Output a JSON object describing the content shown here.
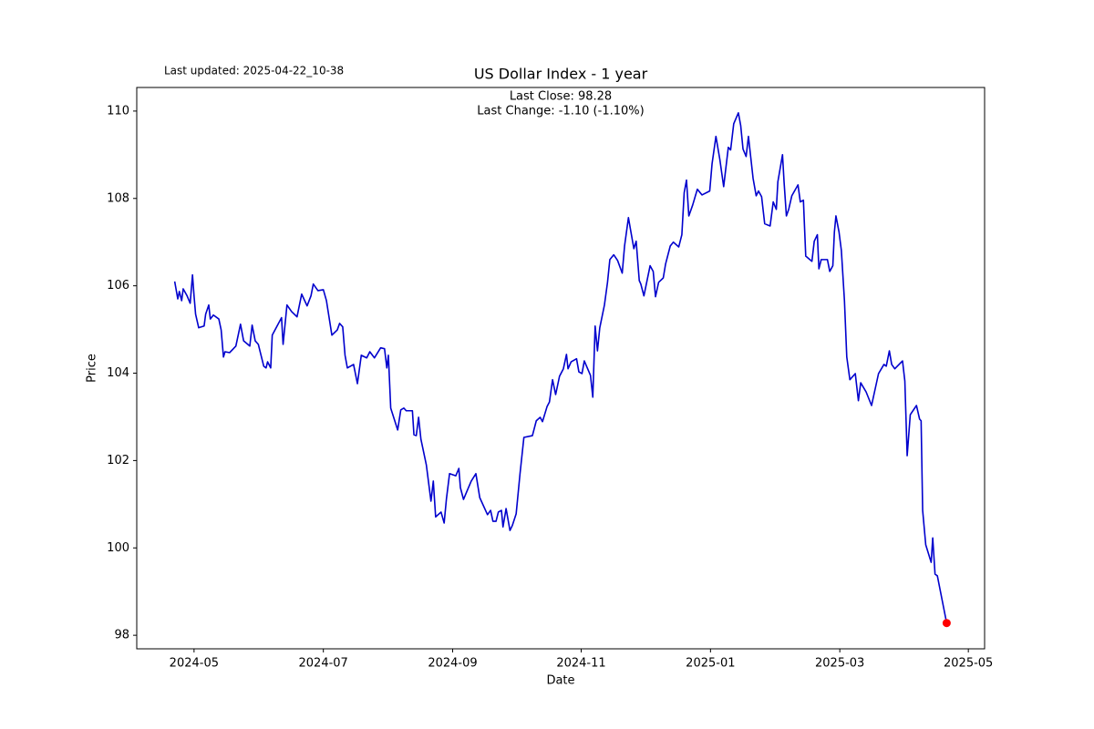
{
  "chart_data": {
    "type": "line",
    "title": "US Dollar Index - 1 year",
    "note": "Last updated: 2025-04-22_10-38",
    "annotations": [
      "Last Close: 98.28",
      "Last Change: -1.10 (-1.10%)"
    ],
    "x_label": "Date",
    "y_label": "Price",
    "xlim": [
      2024.259,
      2025.354
    ],
    "ylim": [
      97.69,
      110.54
    ],
    "xticks": [
      {
        "value": 2024.333,
        "label": "2024-05"
      },
      {
        "value": 2024.5,
        "label": "2024-07"
      },
      {
        "value": 2024.667,
        "label": "2024-09"
      },
      {
        "value": 2024.833,
        "label": "2024-11"
      },
      {
        "value": 2025.0,
        "label": "2025-01"
      },
      {
        "value": 2025.167,
        "label": "2025-03"
      },
      {
        "value": 2025.333,
        "label": "2025-05"
      }
    ],
    "yticks": [
      98,
      100,
      102,
      104,
      106,
      108,
      110
    ],
    "grid": false,
    "last_point_color": "#ff0000",
    "x": [
      2024.308,
      2024.312,
      2024.314,
      2024.317,
      2024.319,
      2024.324,
      2024.328,
      2024.331,
      2024.333,
      2024.335,
      2024.339,
      2024.346,
      2024.348,
      2024.352,
      2024.354,
      2024.358,
      2024.365,
      2024.368,
      2024.371,
      2024.373,
      2024.379,
      2024.387,
      2024.393,
      2024.397,
      2024.405,
      2024.408,
      2024.412,
      2024.416,
      2024.423,
      2024.426,
      2024.428,
      2024.432,
      2024.434,
      2024.446,
      2024.448,
      2024.453,
      2024.459,
      2024.466,
      2024.472,
      2024.479,
      2024.484,
      2024.487,
      2024.493,
      2024.5,
      2024.504,
      2024.511,
      2024.518,
      2024.521,
      2024.525,
      2024.528,
      2024.531,
      2024.539,
      2024.544,
      2024.549,
      2024.556,
      2024.56,
      2024.566,
      2024.574,
      2024.579,
      2024.582,
      2024.584,
      2024.587,
      2024.596,
      2024.6,
      2024.604,
      2024.607,
      2024.615,
      2024.617,
      2024.62,
      2024.623,
      2024.626,
      2024.633,
      2024.639,
      2024.642,
      2024.645,
      2024.652,
      2024.656,
      2024.659,
      2024.663,
      2024.671,
      2024.675,
      2024.677,
      2024.681,
      2024.685,
      2024.691,
      2024.697,
      2024.702,
      2024.712,
      2024.716,
      2024.719,
      2024.723,
      2024.726,
      2024.73,
      2024.732,
      2024.736,
      2024.741,
      2024.744,
      2024.749,
      2024.754,
      2024.759,
      2024.77,
      2024.775,
      2024.78,
      2024.783,
      2024.789,
      2024.792,
      2024.796,
      2024.8,
      2024.805,
      2024.81,
      2024.814,
      2024.816,
      2024.82,
      2024.827,
      2024.83,
      2024.834,
      2024.837,
      2024.845,
      2024.848,
      2024.851,
      2024.854,
      2024.857,
      2024.863,
      2024.867,
      2024.87,
      2024.875,
      2024.88,
      2024.886,
      2024.889,
      2024.894,
      2024.901,
      2024.904,
      2024.908,
      2024.91,
      2024.914,
      2024.922,
      2024.926,
      2024.929,
      2024.933,
      2024.939,
      2024.942,
      2024.948,
      2024.952,
      2024.959,
      2024.963,
      2024.966,
      2024.969,
      2024.972,
      2024.977,
      2024.983,
      2024.989,
      2024.999,
      2025.002,
      2025.007,
      2025.012,
      2025.017,
      2025.023,
      2025.026,
      2025.03,
      2025.036,
      2025.039,
      2025.042,
      2025.046,
      2025.049,
      2025.055,
      2025.059,
      2025.062,
      2025.066,
      2025.07,
      2025.077,
      2025.081,
      2025.085,
      2025.087,
      2025.093,
      2025.095,
      2025.098,
      2025.101,
      2025.105,
      2025.113,
      2025.116,
      2025.12,
      2025.123,
      2025.131,
      2025.134,
      2025.138,
      2025.14,
      2025.143,
      2025.151,
      2025.154,
      2025.158,
      2025.16,
      2025.162,
      2025.166,
      2025.169,
      2025.173,
      2025.176,
      2025.18,
      2025.187,
      2025.191,
      2025.194,
      2025.201,
      2025.208,
      2025.217,
      2025.224,
      2025.227,
      2025.231,
      2025.234,
      2025.238,
      2025.248,
      2025.251,
      2025.254,
      2025.258,
      2025.266,
      2025.27,
      2025.272,
      2025.274,
      2025.278,
      2025.285,
      2025.287,
      2025.29,
      2025.293,
      2025.305
    ],
    "series": [
      {
        "name": "US Dollar Index",
        "color": "#0000cd",
        "values": [
          106.1,
          105.7,
          105.87,
          105.66,
          105.93,
          105.77,
          105.6,
          106.25,
          105.77,
          105.35,
          105.04,
          105.08,
          105.35,
          105.56,
          105.24,
          105.33,
          105.24,
          104.99,
          104.37,
          104.49,
          104.47,
          104.62,
          105.12,
          104.74,
          104.62,
          105.1,
          104.74,
          104.66,
          104.16,
          104.12,
          104.26,
          104.12,
          104.87,
          105.27,
          104.66,
          105.56,
          105.41,
          105.29,
          105.81,
          105.54,
          105.77,
          106.04,
          105.89,
          105.91,
          105.66,
          104.87,
          104.99,
          105.14,
          105.06,
          104.41,
          104.12,
          104.2,
          103.76,
          104.41,
          104.35,
          104.49,
          104.35,
          104.58,
          104.56,
          104.12,
          104.41,
          103.2,
          102.7,
          103.16,
          103.2,
          103.14,
          103.14,
          102.59,
          102.57,
          102.99,
          102.49,
          101.9,
          101.07,
          101.53,
          100.71,
          100.82,
          100.57,
          101.13,
          101.7,
          101.65,
          101.82,
          101.38,
          101.11,
          101.28,
          101.53,
          101.7,
          101.15,
          100.76,
          100.86,
          100.61,
          100.61,
          100.82,
          100.86,
          100.48,
          100.9,
          100.4,
          100.51,
          100.78,
          101.7,
          102.53,
          102.57,
          102.91,
          102.99,
          102.89,
          103.24,
          103.34,
          103.85,
          103.51,
          103.93,
          104.1,
          104.43,
          104.1,
          104.26,
          104.33,
          104.03,
          103.99,
          104.28,
          103.95,
          103.45,
          105.08,
          104.51,
          105.04,
          105.56,
          106.08,
          106.6,
          106.71,
          106.58,
          106.29,
          106.91,
          107.56,
          106.85,
          107.02,
          106.12,
          106.04,
          105.77,
          106.46,
          106.33,
          105.75,
          106.08,
          106.18,
          106.5,
          106.91,
          107.0,
          106.89,
          107.17,
          108.13,
          108.42,
          107.6,
          107.85,
          108.21,
          108.08,
          108.17,
          108.79,
          109.42,
          108.9,
          108.27,
          109.17,
          109.11,
          109.71,
          109.96,
          109.67,
          109.13,
          108.96,
          109.42,
          108.46,
          108.06,
          108.17,
          108.04,
          107.42,
          107.37,
          107.92,
          107.75,
          108.38,
          109.0,
          108.38,
          107.6,
          107.75,
          108.06,
          108.31,
          107.92,
          107.96,
          106.68,
          106.56,
          107.02,
          107.17,
          106.39,
          106.6,
          106.6,
          106.33,
          106.46,
          107.23,
          107.6,
          107.23,
          106.81,
          105.66,
          104.37,
          103.85,
          103.99,
          103.37,
          103.78,
          103.57,
          103.26,
          103.99,
          104.2,
          104.16,
          104.51,
          104.2,
          104.1,
          104.28,
          103.82,
          102.11,
          103.05,
          103.26,
          102.95,
          102.91,
          100.86,
          100.07,
          99.67,
          100.23,
          99.4,
          99.36,
          98.28
        ]
      }
    ]
  }
}
